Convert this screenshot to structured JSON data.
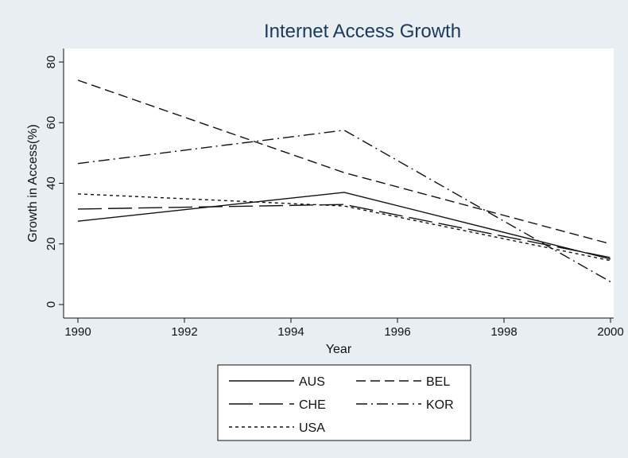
{
  "chart_data": {
    "type": "line",
    "title": "Internet Access Growth",
    "xlabel": "Year",
    "ylabel": "Growth in Access(%)",
    "xlim": [
      1990,
      2000
    ],
    "ylim": [
      0,
      80
    ],
    "xticks": [
      1990,
      1992,
      1994,
      1996,
      1998,
      2000
    ],
    "yticks": [
      0,
      20,
      40,
      60,
      80
    ],
    "x": [
      1990,
      1995,
      2000
    ],
    "grid": false,
    "legend_position": "bottom",
    "series": [
      {
        "name": "AUS",
        "values": [
          27.5,
          37,
          15
        ],
        "dash": "solid",
        "color": "#111111"
      },
      {
        "name": "BEL",
        "values": [
          74,
          43.5,
          20
        ],
        "dash": "dashed",
        "color": "#111111"
      },
      {
        "name": "CHE",
        "values": [
          31.5,
          33,
          15.5
        ],
        "dash": "longdash",
        "color": "#111111"
      },
      {
        "name": "KOR",
        "values": [
          46.5,
          57.5,
          7.5
        ],
        "dash": "dashdot",
        "color": "#111111"
      },
      {
        "name": "USA",
        "values": [
          36.5,
          32.5,
          14.5
        ],
        "dash": "shortdash",
        "color": "#111111"
      }
    ],
    "colors": {
      "background": "#e8eef2",
      "plot_background": "#ffffff",
      "title": "#1a3a5c"
    }
  }
}
